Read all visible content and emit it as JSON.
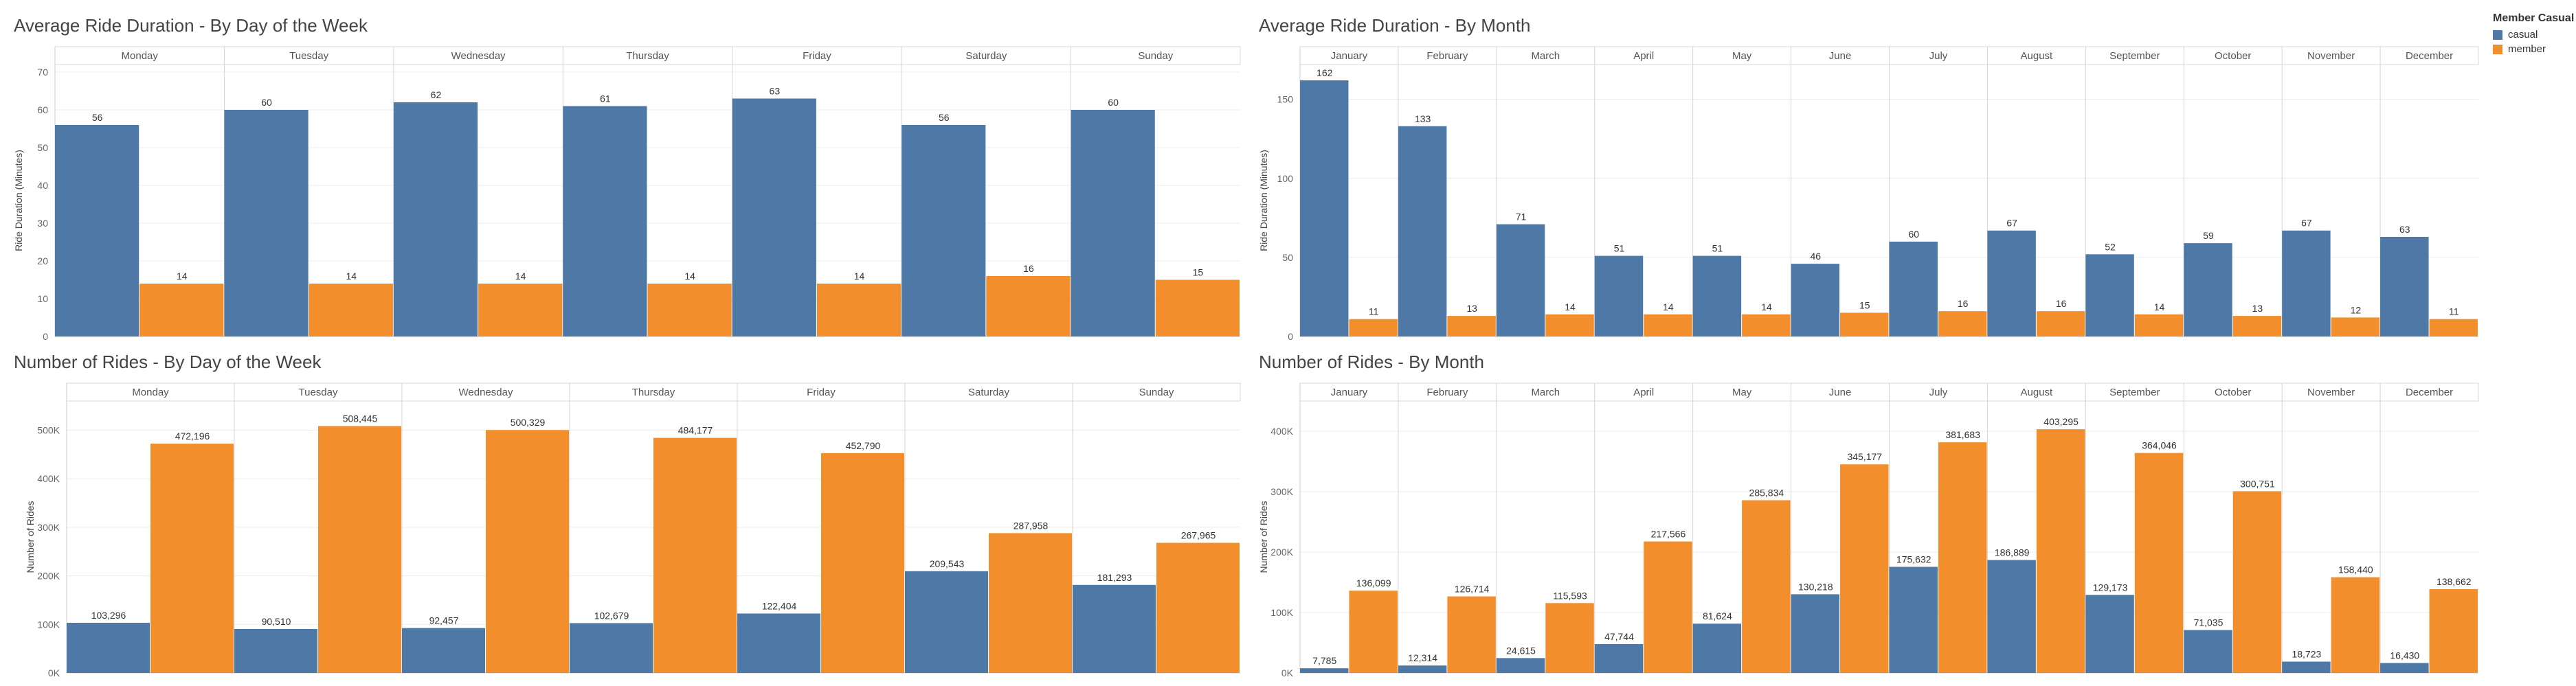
{
  "colors": {
    "casual": "#4e79a7",
    "member": "#f28e2b"
  },
  "legend": {
    "title": "Member Casual",
    "items": [
      "casual",
      "member"
    ]
  },
  "chart_data": [
    {
      "id": "dur-dow",
      "type": "bar",
      "title": "Average Ride Duration - By Day of the Week",
      "ylabel": "Ride Duration (Minutes)",
      "ylim": [
        0,
        72
      ],
      "yticks": [
        0,
        10,
        20,
        30,
        40,
        50,
        60,
        70
      ],
      "ytick_labels": [
        "0",
        "10",
        "20",
        "30",
        "40",
        "50",
        "60",
        "70"
      ],
      "categories": [
        "Monday",
        "Tuesday",
        "Wednesday",
        "Thursday",
        "Friday",
        "Saturday",
        "Sunday"
      ],
      "series": [
        {
          "name": "casual",
          "values": [
            56,
            60,
            62,
            61,
            63,
            56,
            60
          ],
          "labels": [
            "56",
            "60",
            "62",
            "61",
            "63",
            "56",
            "60"
          ]
        },
        {
          "name": "member",
          "values": [
            14,
            14,
            14,
            14,
            14,
            16,
            15
          ],
          "labels": [
            "14",
            "14",
            "14",
            "14",
            "14",
            "16",
            "15"
          ]
        }
      ]
    },
    {
      "id": "dur-month",
      "type": "bar",
      "title": "Average Ride Duration - By Month",
      "ylabel": "Ride Duration (Minutes)",
      "ylim": [
        0,
        172
      ],
      "yticks": [
        0,
        50,
        100,
        150
      ],
      "ytick_labels": [
        "0",
        "50",
        "100",
        "150"
      ],
      "categories": [
        "January",
        "February",
        "March",
        "April",
        "May",
        "June",
        "July",
        "August",
        "September",
        "October",
        "November",
        "December"
      ],
      "series": [
        {
          "name": "casual",
          "values": [
            162,
            133,
            71,
            51,
            51,
            46,
            60,
            67,
            52,
            59,
            67,
            63
          ],
          "labels": [
            "162",
            "133",
            "71",
            "51",
            "51",
            "46",
            "60",
            "67",
            "52",
            "59",
            "67",
            "63"
          ]
        },
        {
          "name": "member",
          "values": [
            11,
            13,
            14,
            14,
            14,
            15,
            16,
            16,
            14,
            13,
            12,
            11
          ],
          "labels": [
            "11",
            "13",
            "14",
            "14",
            "14",
            "15",
            "16",
            "16",
            "14",
            "13",
            "12",
            "11"
          ]
        }
      ]
    },
    {
      "id": "rides-dow",
      "type": "bar",
      "title": "Number of Rides - By Day of the Week",
      "ylabel": "Number of Rides",
      "ylim": [
        0,
        560000
      ],
      "yticks": [
        0,
        100000,
        200000,
        300000,
        400000,
        500000
      ],
      "ytick_labels": [
        "0K",
        "100K",
        "200K",
        "300K",
        "400K",
        "500K"
      ],
      "categories": [
        "Monday",
        "Tuesday",
        "Wednesday",
        "Thursday",
        "Friday",
        "Saturday",
        "Sunday"
      ],
      "series": [
        {
          "name": "casual",
          "values": [
            103296,
            90510,
            92457,
            102679,
            122404,
            209543,
            181293
          ],
          "labels": [
            "103,296",
            "90,510",
            "92,457",
            "102,679",
            "122,404",
            "209,543",
            "181,293"
          ]
        },
        {
          "name": "member",
          "values": [
            472196,
            508445,
            500329,
            484177,
            452790,
            287958,
            267965
          ],
          "labels": [
            "472,196",
            "508,445",
            "500,329",
            "484,177",
            "452,790",
            "287,958",
            "267,965"
          ]
        }
      ]
    },
    {
      "id": "rides-month",
      "type": "bar",
      "title": "Number of Rides - By Month",
      "ylabel": "Number of Rides",
      "ylim": [
        0,
        450000
      ],
      "yticks": [
        0,
        100000,
        200000,
        300000,
        400000
      ],
      "ytick_labels": [
        "0K",
        "100K",
        "200K",
        "300K",
        "400K"
      ],
      "categories": [
        "January",
        "February",
        "March",
        "April",
        "May",
        "June",
        "July",
        "August",
        "September",
        "October",
        "November",
        "December"
      ],
      "series": [
        {
          "name": "casual",
          "values": [
            7785,
            12314,
            24615,
            47744,
            81624,
            130218,
            175632,
            186889,
            129173,
            71035,
            18723,
            16430
          ],
          "labels": [
            "7,785",
            "12,314",
            "24,615",
            "47,744",
            "81,624",
            "130,218",
            "175,632",
            "186,889",
            "129,173",
            "71,035",
            "18,723",
            "16,430"
          ]
        },
        {
          "name": "member",
          "values": [
            136099,
            126714,
            115593,
            217566,
            285834,
            345177,
            381683,
            403295,
            364046,
            300751,
            158440,
            138662
          ],
          "labels": [
            "136,099",
            "126,714",
            "115,593",
            "217,566",
            "285,834",
            "345,177",
            "381,683",
            "403,295",
            "364,046",
            "300,751",
            "158,440",
            "138,662"
          ]
        }
      ]
    }
  ]
}
